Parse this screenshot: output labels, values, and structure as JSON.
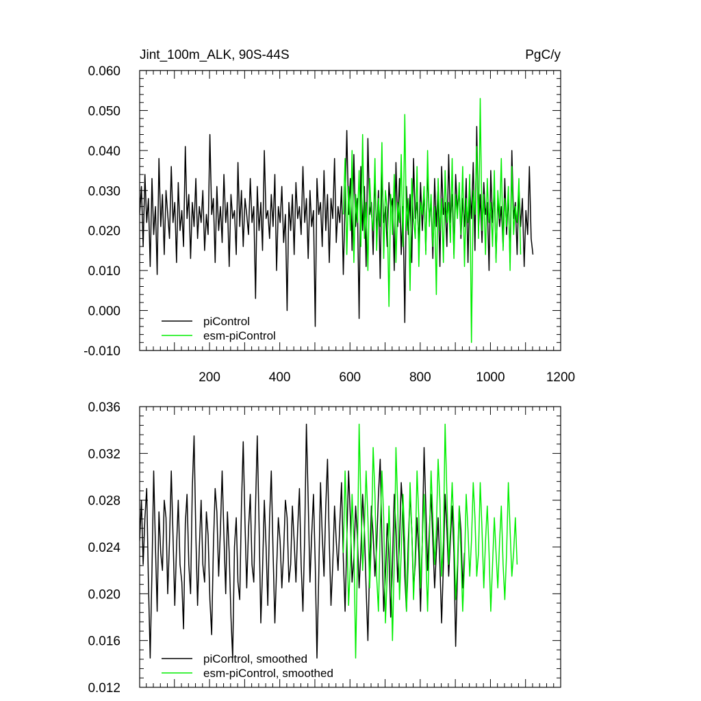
{
  "chart_data": [
    {
      "type": "line",
      "title": "Jint_100m_ALK, 90S-44S",
      "units": "PgC/y",
      "xlabel": "",
      "ylabel": "",
      "xlim": [
        1,
        1200
      ],
      "ylim": [
        -0.01,
        0.06
      ],
      "xticks": [
        200,
        400,
        600,
        800,
        1000,
        1200
      ],
      "yticks": [
        -0.01,
        0.0,
        0.01,
        0.02,
        0.03,
        0.04,
        0.05,
        0.06
      ],
      "ytick_labels": [
        "-0.010",
        "0.000",
        "0.010",
        "0.020",
        "0.030",
        "0.040",
        "0.050",
        "0.060"
      ],
      "grid": false,
      "legend_position": "bottom-left",
      "series": [
        {
          "name": "piControl",
          "color": "#000000",
          "x_start": 1,
          "x_step": 5,
          "values": [
            0.024,
            0.031,
            0.016,
            0.034,
            0.022,
            0.028,
            0.011,
            0.033,
            0.019,
            0.026,
            0.009,
            0.038,
            0.021,
            0.029,
            0.014,
            0.03,
            0.024,
            0.018,
            0.036,
            0.022,
            0.027,
            0.012,
            0.032,
            0.02,
            0.025,
            0.016,
            0.041,
            0.023,
            0.029,
            0.013,
            0.027,
            0.021,
            0.033,
            0.018,
            0.026,
            0.022,
            0.03,
            0.015,
            0.024,
            0.019,
            0.044,
            0.024,
            0.028,
            0.012,
            0.031,
            0.02,
            0.026,
            0.017,
            0.034,
            0.022,
            0.027,
            0.011,
            0.029,
            0.023,
            0.025,
            0.014,
            0.037,
            0.021,
            0.03,
            0.016,
            0.028,
            0.024,
            0.019,
            0.033,
            0.022,
            0.026,
            0.003,
            0.031,
            0.02,
            0.027,
            0.015,
            0.04,
            0.023,
            0.025,
            0.018,
            0.029,
            0.021,
            0.034,
            0.01,
            0.026,
            0.022,
            0.031,
            0.017,
            0.024,
            0.0,
            0.027,
            0.02,
            0.029,
            0.014,
            0.032,
            0.023,
            0.026,
            0.019,
            0.036,
            0.022,
            0.028,
            0.013,
            0.03,
            0.021,
            0.025,
            -0.004,
            0.033,
            0.024,
            0.027,
            0.016,
            0.035,
            0.02,
            0.029,
            0.012,
            0.028,
            0.023,
            0.038,
            0.017,
            0.026,
            0.022,
            0.031,
            0.009,
            0.027,
            0.045,
            0.024,
            0.033,
            0.015,
            0.039,
            0.021,
            0.028,
            -0.002,
            0.036,
            0.02,
            0.031,
            0.011,
            0.043,
            0.024,
            0.027,
            0.014,
            0.034,
            0.019,
            0.03,
            0.008,
            0.035,
            0.022,
            0.026,
            0.016,
            0.032,
            0.025,
            0.028,
            0.01,
            0.037,
            0.021,
            0.033,
            0.014,
            0.026,
            -0.003,
            0.031,
            0.019,
            0.029,
            0.012,
            0.038,
            0.023,
            0.027,
            0.017,
            0.032,
            0.02,
            0.03,
            0.015,
            0.035,
            0.022,
            0.028,
            0.013,
            0.033,
            0.021,
            0.031,
            0.011,
            0.036,
            0.024,
            0.027,
            0.016,
            0.039,
            0.022,
            0.029,
            0.014,
            0.034,
            0.025,
            0.03,
            0.018,
            0.028,
            0.021,
            0.033,
            0.012,
            0.031,
            0.023,
            0.037,
            0.015,
            0.046,
            0.02,
            0.029,
            0.017,
            0.032,
            0.024,
            0.027,
            0.01,
            0.035,
            0.022,
            0.03,
            0.013,
            0.028,
            0.021,
            0.026,
            0.016,
            0.033,
            0.019,
            0.029,
            0.012,
            0.04,
            0.023,
            0.027,
            0.014,
            0.031,
            0.021,
            0.028,
            0.011,
            0.025,
            0.019,
            0.036,
            0.018,
            0.014
          ]
        },
        {
          "name": "esm-piControl",
          "color": "#00ee00",
          "x_start": 581,
          "x_step": 5,
          "values": [
            0.024,
            0.038,
            0.014,
            0.031,
            0.02,
            0.04,
            0.012,
            0.029,
            0.022,
            0.035,
            0.016,
            0.044,
            0.018,
            0.027,
            0.01,
            0.033,
            0.024,
            0.02,
            0.038,
            0.015,
            0.028,
            0.021,
            0.042,
            0.013,
            0.03,
            0.025,
            0.001,
            0.029,
            0.019,
            0.034,
            0.012,
            0.027,
            0.022,
            0.039,
            0.016,
            0.049,
            0.02,
            0.028,
            0.005,
            0.033,
            0.023,
            0.018,
            0.036,
            0.011,
            0.027,
            0.024,
            0.031,
            0.014,
            0.04,
            0.021,
            0.029,
            0.016,
            0.026,
            0.004,
            0.033,
            0.02,
            0.028,
            0.012,
            0.035,
            0.022,
            0.027,
            0.017,
            0.038,
            0.013,
            0.029,
            0.023,
            0.032,
            0.019,
            0.036,
            0.011,
            0.028,
            0.022,
            0.034,
            -0.008,
            0.03,
            0.024,
            0.041,
            0.018,
            0.053,
            0.02,
            0.029,
            0.014,
            0.033,
            0.022,
            0.027,
            0.016,
            0.035,
            0.012,
            0.03,
            0.023,
            0.038,
            0.015,
            0.028,
            0.021,
            0.031,
            0.01,
            0.036,
            0.019,
            0.026,
            0.022,
            0.033,
            0.014
          ]
        }
      ]
    },
    {
      "type": "line",
      "title": "",
      "xlabel": "",
      "ylabel": "",
      "xlim": [
        1,
        1200
      ],
      "ylim": [
        0.012,
        0.036
      ],
      "xticks": [
        200,
        400,
        600,
        800,
        1000,
        1200
      ],
      "yticks": [
        0.012,
        0.016,
        0.02,
        0.024,
        0.028,
        0.032,
        0.036
      ],
      "ytick_labels": [
        "0.012",
        "0.016",
        "0.020",
        "0.024",
        "0.028",
        "0.032",
        "0.036"
      ],
      "grid": false,
      "legend_position": "bottom-left",
      "series": [
        {
          "name": "piControl, smoothed",
          "color": "#000000",
          "x_start": 1,
          "x_step": 5,
          "values": [
            0.0245,
            0.028,
            0.0225,
            0.0265,
            0.029,
            0.021,
            0.0145,
            0.022,
            0.0305,
            0.024,
            0.0185,
            0.027,
            0.0235,
            0.022,
            0.028,
            0.0265,
            0.02,
            0.0245,
            0.0305,
            0.025,
            0.019,
            0.024,
            0.028,
            0.0225,
            0.021,
            0.017,
            0.026,
            0.0285,
            0.0225,
            0.02,
            0.029,
            0.0335,
            0.025,
            0.019,
            0.024,
            0.028,
            0.0225,
            0.021,
            0.027,
            0.025,
            0.0195,
            0.0165,
            0.024,
            0.029,
            0.027,
            0.0215,
            0.0255,
            0.0305,
            0.025,
            0.02,
            0.027,
            0.0235,
            0.018,
            0.0145,
            0.024,
            0.0265,
            0.021,
            0.0195,
            0.0275,
            0.033,
            0.026,
            0.0205,
            0.0255,
            0.0285,
            0.0225,
            0.021,
            0.0275,
            0.0335,
            0.026,
            0.0175,
            0.022,
            0.028,
            0.024,
            0.019,
            0.0265,
            0.0305,
            0.0235,
            0.0175,
            0.022,
            0.0265,
            0.0245,
            0.0205,
            0.0235,
            0.028,
            0.0265,
            0.021,
            0.0225,
            0.0275,
            0.0245,
            0.021,
            0.0255,
            0.029,
            0.0225,
            0.0185,
            0.025,
            0.0345,
            0.028,
            0.021,
            0.025,
            0.0285,
            0.0225,
            0.0145,
            0.0215,
            0.0295,
            0.025,
            0.0215,
            0.0275,
            0.0315,
            0.0245,
            0.019,
            0.0225,
            0.0275,
            0.0245,
            0.022,
            0.026,
            0.0295,
            0.023,
            0.0185,
            0.0245,
            0.0305,
            0.0265,
            0.021,
            0.023,
            0.0275,
            0.025,
            0.0205,
            0.0235,
            0.0285,
            0.0255,
            0.0205,
            0.016,
            0.0225,
            0.0275,
            0.025,
            0.0215,
            0.024,
            0.0285,
            0.0315,
            0.0245,
            0.0185,
            0.0215,
            0.026,
            0.0235,
            0.018,
            0.0225,
            0.0285,
            0.0255,
            0.021,
            0.0245,
            0.0295,
            0.027,
            0.0215,
            0.0185,
            0.0245,
            0.0285,
            0.0255,
            0.0205,
            0.0225,
            0.0265,
            0.0235,
            0.0185,
            0.0245,
            0.0325,
            0.0275,
            0.022,
            0.0255,
            0.0285,
            0.0245,
            0.0205,
            0.0235,
            0.0265,
            0.0225,
            0.0175,
            0.0225,
            0.0285,
            0.0255,
            0.0215,
            0.0245,
            0.0275,
            0.0235,
            0.0155,
            0.0215,
            0.0275,
            0.0255,
            0.0205,
            0.0235
          ]
        },
        {
          "name": "esm-piControl, smoothed",
          "color": "#00ee00",
          "x_start": 581,
          "x_step": 5,
          "values": [
            0.0235,
            0.0305,
            0.0255,
            0.019,
            0.0225,
            0.0285,
            0.0245,
            0.0145,
            0.0225,
            0.0345,
            0.028,
            0.022,
            0.0255,
            0.0305,
            0.0265,
            0.0205,
            0.0245,
            0.0325,
            0.0285,
            0.0215,
            0.0185,
            0.0255,
            0.0305,
            0.0265,
            0.0175,
            0.0215,
            0.0275,
            0.0235,
            0.016,
            0.0225,
            0.0325,
            0.0275,
            0.0195,
            0.0235,
            0.0285,
            0.0245,
            0.0185,
            0.0225,
            0.0295,
            0.0255,
            0.0195,
            0.0235,
            0.0305,
            0.0265,
            0.0205,
            0.0245,
            0.0285,
            0.0235,
            0.0185,
            0.0245,
            0.0305,
            0.0265,
            0.0225,
            0.0255,
            0.0315,
            0.028,
            0.0215,
            0.0245,
            0.0345,
            0.0285,
            0.0225,
            0.0255,
            0.0295,
            0.0255,
            0.0195,
            0.0225,
            0.0275,
            0.0235,
            0.0185,
            0.0225,
            0.0285,
            0.0255,
            0.0215,
            0.0245,
            0.0295,
            0.0265,
            0.0215,
            0.0235,
            0.0295,
            0.0255,
            0.0205,
            0.0245,
            0.0275,
            0.0235,
            0.0185,
            0.0225,
            0.0265,
            0.0235,
            0.0205,
            0.0245,
            0.0275,
            0.0225,
            0.0195,
            0.0235,
            0.0295,
            0.0255,
            0.0215,
            0.0235,
            0.0265,
            0.0225
          ]
        }
      ]
    }
  ]
}
